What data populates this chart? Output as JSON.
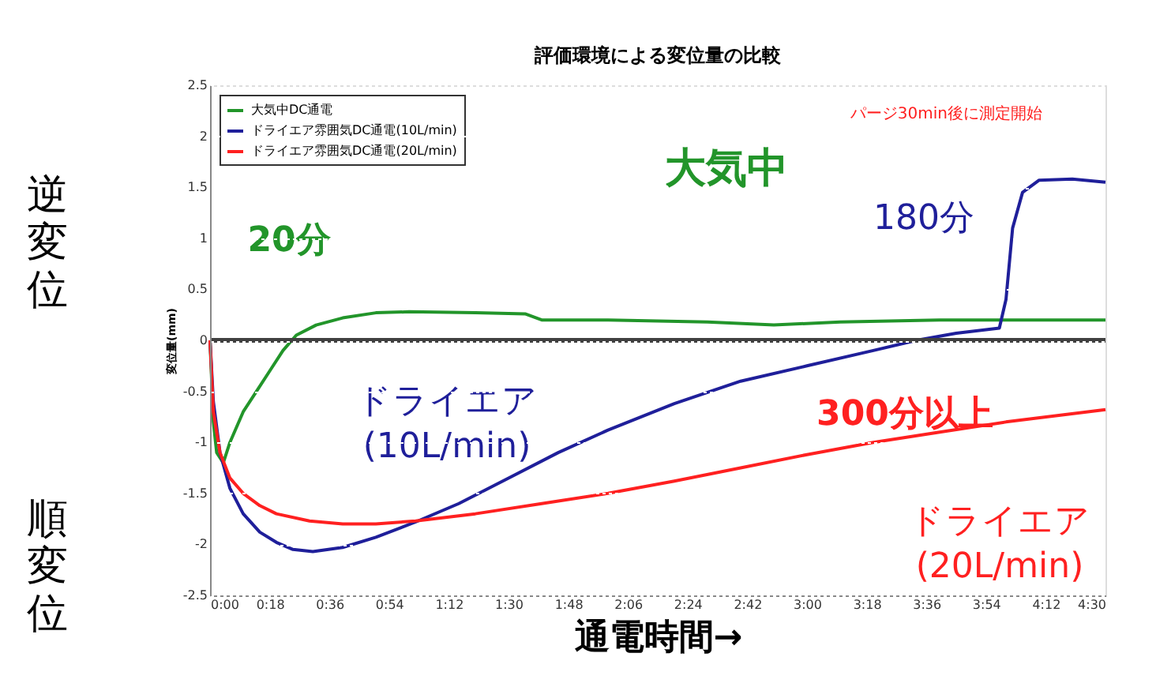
{
  "chart_data": {
    "type": "line",
    "title": "評価環境による変位量の比較",
    "xlabel": "通電時間→",
    "ylabel": "変位量(mm)",
    "xlim": [
      0,
      270
    ],
    "xticks": [
      {
        "value": 0,
        "label": "0:00"
      },
      {
        "value": 18,
        "label": "0:18"
      },
      {
        "value": 36,
        "label": "0:36"
      },
      {
        "value": 54,
        "label": "0:54"
      },
      {
        "value": 72,
        "label": "1:12"
      },
      {
        "value": 90,
        "label": "1:30"
      },
      {
        "value": 108,
        "label": "1:48"
      },
      {
        "value": 126,
        "label": "2:06"
      },
      {
        "value": 144,
        "label": "2:24"
      },
      {
        "value": 162,
        "label": "2:42"
      },
      {
        "value": 180,
        "label": "3:00"
      },
      {
        "value": 198,
        "label": "3:18"
      },
      {
        "value": 216,
        "label": "3:36"
      },
      {
        "value": 234,
        "label": "3:54"
      },
      {
        "value": 252,
        "label": "4:12"
      },
      {
        "value": 270,
        "label": "4:30"
      }
    ],
    "ylim": [
      -2.5,
      2.5
    ],
    "yticks": [
      -2.5,
      -2,
      -1.5,
      -1,
      -0.5,
      0,
      0.5,
      1,
      1.5,
      2,
      2.5
    ],
    "grid": "y",
    "legend": "top left",
    "line_style": "solid",
    "marker": "none",
    "ref_lines": [
      {
        "axis": "y",
        "value": 0,
        "color": "#404040"
      }
    ],
    "series": [
      {
        "name": "大気中DC通電",
        "color": "#22952a",
        "x": [
          0,
          1,
          2,
          4,
          6,
          10,
          14,
          18,
          22,
          26,
          32,
          40,
          50,
          60,
          80,
          95,
          100,
          120,
          150,
          170,
          190,
          220,
          270
        ],
        "values": [
          0,
          -0.8,
          -1.1,
          -1.2,
          -1.0,
          -0.7,
          -0.5,
          -0.3,
          -0.1,
          0.05,
          0.15,
          0.22,
          0.27,
          0.28,
          0.27,
          0.26,
          0.2,
          0.2,
          0.18,
          0.15,
          0.18,
          0.2,
          0.2
        ]
      },
      {
        "name": "ドライエア雰囲気DC通電(10L/min)",
        "color": "#1f1f9a",
        "x": [
          0,
          1,
          3,
          6,
          10,
          15,
          20,
          25,
          31,
          40,
          50,
          62,
          75,
          90,
          105,
          120,
          140,
          160,
          180,
          200,
          213,
          225,
          238,
          240,
          242,
          245,
          250,
          260,
          270
        ],
        "values": [
          0,
          -0.6,
          -1.1,
          -1.45,
          -1.7,
          -1.88,
          -1.98,
          -2.05,
          -2.07,
          -2.03,
          -1.93,
          -1.78,
          -1.6,
          -1.35,
          -1.1,
          -0.88,
          -0.62,
          -0.4,
          -0.25,
          -0.1,
          0,
          0.07,
          0.12,
          0.4,
          1.1,
          1.45,
          1.57,
          1.58,
          1.55
        ]
      },
      {
        "name": "ドライエア雰囲気DC通電(20L/min)",
        "color": "#ff2020",
        "x": [
          0,
          1,
          3,
          6,
          10,
          15,
          20,
          30,
          40,
          50,
          62,
          80,
          100,
          120,
          140,
          160,
          180,
          200,
          220,
          240,
          270
        ],
        "values": [
          0,
          -0.7,
          -1.1,
          -1.35,
          -1.5,
          -1.62,
          -1.7,
          -1.77,
          -1.8,
          -1.8,
          -1.77,
          -1.7,
          -1.6,
          -1.5,
          -1.38,
          -1.25,
          -1.12,
          -1.0,
          -0.9,
          -0.8,
          -0.68
        ]
      }
    ],
    "annotations": [
      "パージ30min後に測定開始",
      "大気中",
      "20分",
      "180分",
      "ドライエア\n(10L/min)",
      "300分以上",
      "ドライエア\n(20L/min)",
      "逆変位",
      "順変位"
    ]
  }
}
